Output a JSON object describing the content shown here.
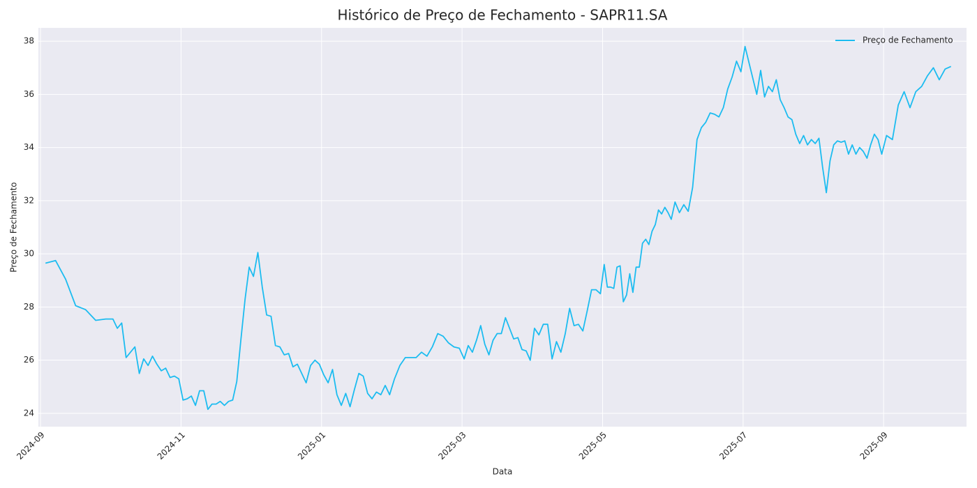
{
  "chart_data": {
    "type": "line",
    "title": "Histórico de Preço de Fechamento - SAPR11.SA",
    "x_label": "Data",
    "y_label": "Preço de Fechamento",
    "x": [
      "2024-09",
      "2024-09",
      "2024-09",
      "2024-09",
      "2024-09",
      "2024-09",
      "2024-09",
      "2024-10",
      "2024-10",
      "2024-10",
      "2024-10",
      "2024-10",
      "2024-10",
      "2024-10",
      "2024-10",
      "2024-10",
      "2024-10",
      "2024-10",
      "2024-10",
      "2024-10",
      "2024-10",
      "2024-10",
      "2024-10",
      "2024-11",
      "2024-11",
      "2024-11",
      "2024-11",
      "2024-11",
      "2024-11",
      "2024-11",
      "2024-11",
      "2024-11",
      "2024-11",
      "2024-11",
      "2024-11",
      "2024-11",
      "2024-11",
      "2024-11",
      "2024-11",
      "2024-11",
      "2024-12",
      "2024-12",
      "2024-12",
      "2024-12",
      "2024-12",
      "2024-12",
      "2024-12",
      "2024-12",
      "2024-12",
      "2024-12",
      "2024-12",
      "2024-12",
      "2024-12",
      "2024-12",
      "2024-12",
      "2024-12",
      "2025-01",
      "2025-01",
      "2025-01",
      "2025-01",
      "2025-01",
      "2025-01",
      "2025-01",
      "2025-01",
      "2025-01",
      "2025-01",
      "2025-01",
      "2025-01",
      "2025-01",
      "2025-01",
      "2025-01",
      "2025-01",
      "2025-02",
      "2025-02",
      "2025-02",
      "2025-02",
      "2025-02",
      "2025-02",
      "2025-02",
      "2025-02",
      "2025-02",
      "2025-02",
      "2025-02",
      "2025-02",
      "2025-02",
      "2025-03",
      "2025-03",
      "2025-03",
      "2025-03",
      "2025-03",
      "2025-03",
      "2025-03",
      "2025-03",
      "2025-03",
      "2025-03",
      "2025-03",
      "2025-03",
      "2025-03",
      "2025-03",
      "2025-03",
      "2025-03",
      "2025-03",
      "2025-04",
      "2025-04",
      "2025-04",
      "2025-04",
      "2025-04",
      "2025-04",
      "2025-04",
      "2025-04",
      "2025-04",
      "2025-04",
      "2025-04",
      "2025-04",
      "2025-04",
      "2025-04",
      "2025-04",
      "2025-04",
      "2025-05",
      "2025-05",
      "2025-05",
      "2025-05",
      "2025-05",
      "2025-05",
      "2025-05",
      "2025-05",
      "2025-05",
      "2025-05",
      "2025-05",
      "2025-05",
      "2025-05",
      "2025-05",
      "2025-05",
      "2025-05",
      "2025-05",
      "2025-05",
      "2025-05",
      "2025-05",
      "2025-05",
      "2025-05",
      "2025-06",
      "2025-06",
      "2025-06",
      "2025-06",
      "2025-06",
      "2025-06",
      "2025-06",
      "2025-06",
      "2025-06",
      "2025-06",
      "2025-06",
      "2025-06",
      "2025-06",
      "2025-06",
      "2025-06",
      "2025-06",
      "2025-07",
      "2025-07",
      "2025-07",
      "2025-07",
      "2025-07",
      "2025-07",
      "2025-07",
      "2025-07",
      "2025-07",
      "2025-07",
      "2025-07",
      "2025-07",
      "2025-07",
      "2025-07",
      "2025-07",
      "2025-07",
      "2025-07",
      "2025-07",
      "2025-08",
      "2025-08",
      "2025-08",
      "2025-08",
      "2025-08",
      "2025-08",
      "2025-08",
      "2025-08",
      "2025-08",
      "2025-08",
      "2025-08",
      "2025-08",
      "2025-08",
      "2025-08",
      "2025-08",
      "2025-08",
      "2025-08",
      "2025-08",
      "2025-08",
      "2025-09",
      "2025-09",
      "2025-09",
      "2025-09",
      "2025-09",
      "2025-09",
      "2025-09",
      "2025-09",
      "2025-09",
      "2025-09",
      "2025-09",
      "2025-09"
    ],
    "series": [
      {
        "name": "Preço de Fechamento",
        "color": "#1cbcf0",
        "values": [
          29.65,
          29.75,
          29.05,
          28.05,
          27.9,
          27.5,
          27.55,
          27.55,
          27.2,
          27.4,
          26.1,
          26.3,
          26.5,
          25.5,
          26.05,
          25.8,
          26.15,
          25.85,
          25.6,
          25.7,
          25.35,
          25.4,
          25.3,
          24.5,
          24.55,
          24.65,
          24.3,
          24.85,
          24.85,
          24.15,
          24.35,
          24.35,
          24.45,
          24.3,
          24.45,
          24.5,
          25.2,
          26.8,
          28.3,
          29.5,
          29.15,
          30.05,
          28.75,
          27.7,
          27.65,
          26.55,
          26.5,
          26.2,
          26.25,
          25.75,
          25.85,
          25.5,
          25.15,
          25.8,
          26.0,
          25.85,
          25.45,
          25.15,
          25.65,
          24.7,
          24.3,
          24.75,
          24.25,
          24.9,
          25.5,
          25.4,
          24.75,
          24.55,
          24.8,
          24.7,
          25.05,
          24.7,
          25.3,
          25.8,
          26.1,
          26.1,
          26.1,
          26.3,
          26.15,
          26.5,
          27.0,
          26.9,
          26.65,
          26.5,
          26.45,
          26.05,
          26.55,
          26.3,
          26.75,
          27.3,
          26.6,
          26.2,
          26.75,
          27.0,
          27.0,
          27.6,
          27.2,
          26.8,
          26.85,
          26.4,
          26.35,
          26.0,
          27.2,
          26.95,
          27.35,
          27.35,
          26.05,
          26.7,
          26.3,
          27.0,
          27.95,
          27.3,
          27.35,
          27.1,
          27.85,
          28.65,
          28.65,
          28.5,
          29.6,
          28.75,
          28.75,
          28.7,
          29.5,
          29.55,
          28.2,
          28.45,
          29.25,
          28.55,
          29.5,
          29.5,
          30.4,
          30.55,
          30.35,
          30.85,
          31.1,
          31.65,
          31.5,
          31.75,
          31.55,
          31.3,
          31.95,
          31.55,
          31.85,
          31.6,
          32.5,
          34.3,
          34.75,
          34.95,
          35.3,
          35.25,
          35.15,
          35.5,
          36.2,
          36.65,
          37.25,
          36.85,
          37.8,
          37.2,
          36.6,
          36.0,
          36.9,
          35.9,
          36.3,
          36.1,
          36.55,
          35.8,
          35.5,
          35.15,
          35.05,
          34.5,
          34.15,
          34.45,
          34.1,
          34.3,
          34.15,
          34.35,
          33.25,
          32.3,
          33.5,
          34.1,
          34.25,
          34.2,
          34.25,
          33.75,
          34.1,
          33.75,
          34.0,
          33.85,
          33.6,
          34.1,
          34.5,
          34.3,
          33.75,
          34.45,
          34.3,
          35.6,
          36.1,
          35.5,
          36.1,
          36.3,
          36.7,
          37.0,
          36.55,
          36.95,
          37.05
        ]
      }
    ],
    "xticks": [
      "2024-09",
      "2024-11",
      "2025-01",
      "2025-03",
      "2025-05",
      "2025-07",
      "2025-09"
    ],
    "ylim": [
      23.5,
      38.5
    ],
    "yticks": [
      24,
      26,
      28,
      30,
      32,
      34,
      36,
      38
    ],
    "grid": true,
    "legend": "upper right"
  }
}
